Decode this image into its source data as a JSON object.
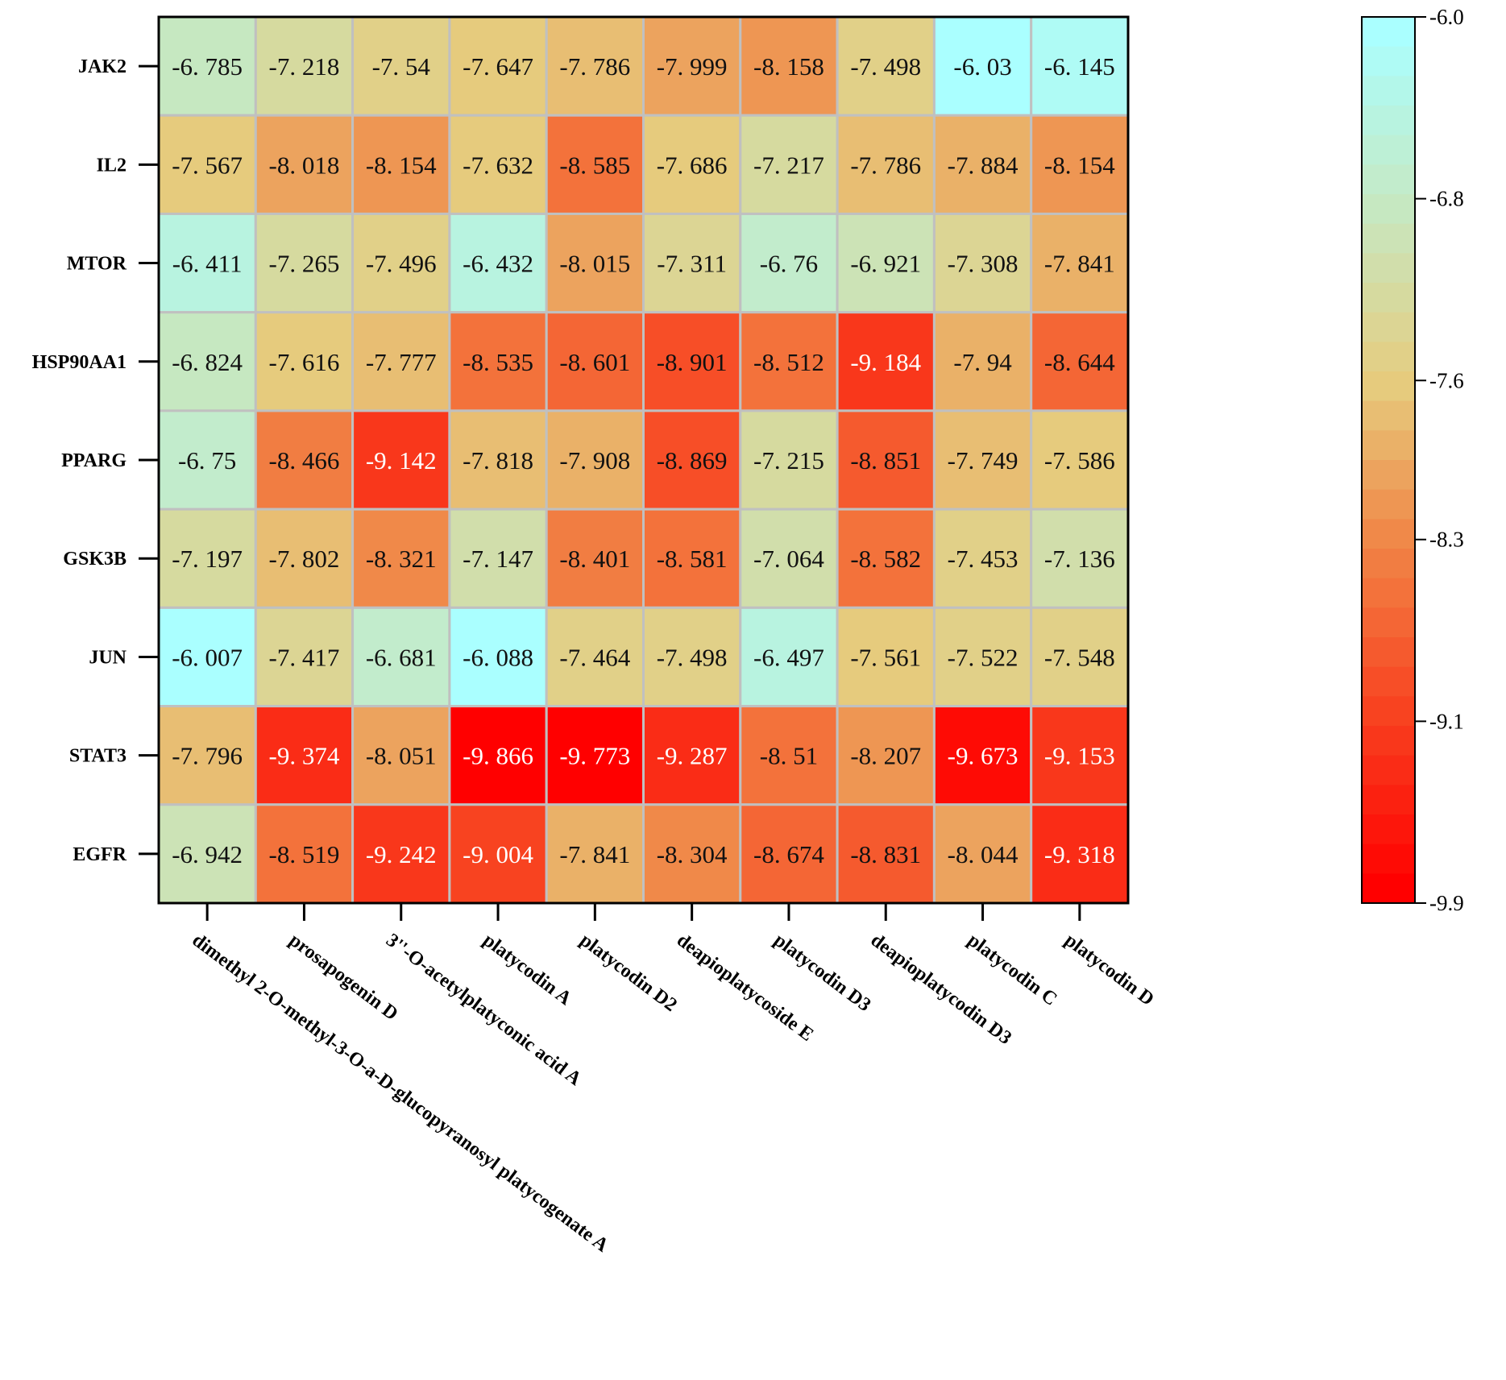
{
  "chart_data": {
    "type": "heatmap",
    "title": "",
    "rows": [
      "JAK2",
      "IL2",
      "MTOR",
      "HSP90AA1",
      "PPARG",
      "GSK3B",
      "JUN",
      "STAT3",
      "EGFR"
    ],
    "columns": [
      "dimethyl 2-O-methyl-3-O-a-D-glucopyranosyl platycogenate A",
      "prosapogenin D",
      "3''-O-acetylplatyconic acid A",
      "platycodin A",
      "platycodin D2",
      "deapioplatycoside E",
      "platycodin D3",
      "deapioplatycodin D3",
      "platycodin C",
      "platycodin D"
    ],
    "values": [
      [
        -6.785,
        -7.218,
        -7.54,
        -7.647,
        -7.786,
        -7.999,
        -8.158,
        -7.498,
        -6.03,
        -6.145
      ],
      [
        -7.567,
        -8.018,
        -8.154,
        -7.632,
        -8.585,
        -7.686,
        -7.217,
        -7.786,
        -7.884,
        -8.154
      ],
      [
        -6.411,
        -7.265,
        -7.496,
        -6.432,
        -8.015,
        -7.311,
        -6.76,
        -6.921,
        -7.308,
        -7.841
      ],
      [
        -6.824,
        -7.616,
        -7.777,
        -8.535,
        -8.601,
        -8.901,
        -8.512,
        -9.184,
        -7.94,
        -8.644
      ],
      [
        -6.75,
        -8.466,
        -9.142,
        -7.818,
        -7.908,
        -8.869,
        -7.215,
        -8.851,
        -7.749,
        -7.586
      ],
      [
        -7.197,
        -7.802,
        -8.321,
        -7.147,
        -8.401,
        -8.581,
        -7.064,
        -8.582,
        -7.453,
        -7.136
      ],
      [
        -6.007,
        -7.417,
        -6.681,
        -6.088,
        -7.464,
        -7.498,
        -6.497,
        -7.561,
        -7.522,
        -7.548
      ],
      [
        -7.796,
        -9.374,
        -8.051,
        -9.866,
        -9.773,
        -9.287,
        -8.51,
        -8.207,
        -9.673,
        -9.153
      ],
      [
        -6.942,
        -8.519,
        -9.242,
        -9.004,
        -7.841,
        -8.304,
        -8.674,
        -8.831,
        -8.044,
        -9.318
      ]
    ],
    "colorbar": {
      "range": [
        -9.9,
        -6.0
      ],
      "ticks": [
        "-6.0",
        "-6.8",
        "-7.6",
        "-8.3",
        "-9.1",
        "-9.9"
      ],
      "tick_values": [
        -6.0,
        -6.8,
        -7.6,
        -8.3,
        -9.1,
        -9.9
      ],
      "colors": [
        "#aaffff",
        "#c6e8c2",
        "#e6cc7e",
        "#f08848",
        "#f84220",
        "#ff0000"
      ],
      "color_stops": [
        -6.0,
        -6.8,
        -7.6,
        -8.3,
        -9.1,
        -9.9
      ],
      "steps": 30
    },
    "grid_color": "#c0c0c0"
  }
}
